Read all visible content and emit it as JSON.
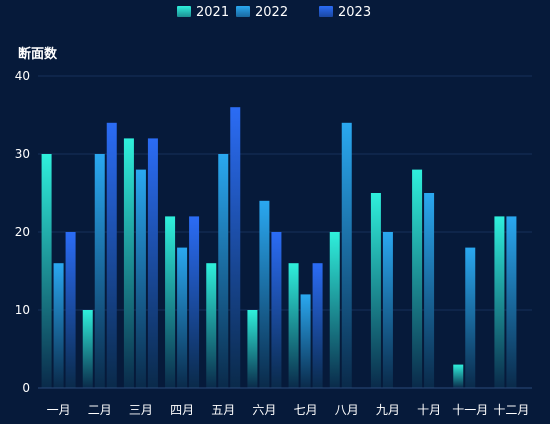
{
  "chart_data": {
    "type": "bar",
    "title": "",
    "ylabel": "断面数",
    "xlabel": "",
    "ylim": [
      0,
      40
    ],
    "yticks": [
      0,
      10,
      20,
      30,
      40
    ],
    "grid": true,
    "legend_position": "top-center",
    "categories": [
      "一月",
      "二月",
      "三月",
      "四月",
      "五月",
      "六月",
      "七月",
      "八月",
      "九月",
      "十月",
      "十一月",
      "十二月"
    ],
    "series": [
      {
        "name": "2021",
        "values": [
          30,
          10,
          32,
          22,
          16,
          10,
          16,
          20,
          25,
          28,
          3,
          22
        ]
      },
      {
        "name": "2022",
        "values": [
          16,
          30,
          28,
          18,
          30,
          24,
          12,
          34,
          20,
          25,
          18,
          22
        ]
      },
      {
        "name": "2023",
        "values": [
          20,
          34,
          32,
          22,
          36,
          20,
          16,
          null,
          null,
          null,
          null,
          null
        ]
      }
    ]
  },
  "colors": {
    "background": "#061a3a",
    "series": [
      {
        "top": "#2ff0dc",
        "bottom": "#0a2a4a"
      },
      {
        "top": "#2aa8f0",
        "bottom": "#0a2a4a"
      },
      {
        "top": "#2b6cf5",
        "bottom": "#0a2a4a"
      }
    ],
    "text": "#ffffff",
    "grid": "#15305a",
    "axis": "#2a4a7a"
  }
}
